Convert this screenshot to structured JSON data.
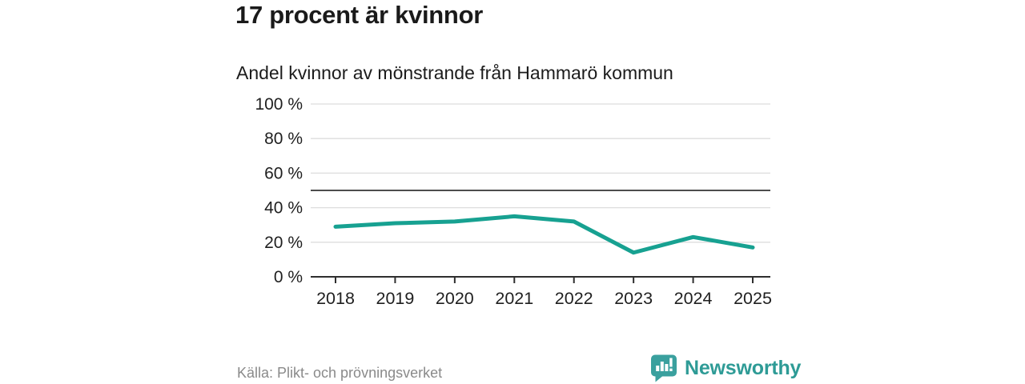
{
  "header": {
    "title": "17 procent är kvinnor",
    "subtitle": "Andel kvinnor av mönstrande från Hammarö kommun"
  },
  "footer": {
    "source": "Källa: Plikt- och prövningsverket",
    "brand_name": "Newsworthy"
  },
  "icons": {
    "logo": "bar-chart-in-speech-bubble"
  },
  "colors": {
    "line": "#17a191",
    "brand": "#2e9b96",
    "logo_fill": "#3aa09e",
    "grid": "#dddddd",
    "axis": "#2e2e2e",
    "reference": "#4d4d4d",
    "tick_text": "#1f1f1f",
    "muted": "#8a8a8a"
  },
  "chart_data": {
    "type": "line",
    "title": "Andel kvinnor av mönstrande från Hammarö kommun",
    "categories": [
      "2018",
      "2019",
      "2020",
      "2021",
      "2022",
      "2023",
      "2024",
      "2025"
    ],
    "series": [
      {
        "name": "Andel kvinnor",
        "values": [
          29,
          31,
          32,
          35,
          32,
          14,
          23,
          17
        ]
      }
    ],
    "xlabel": "",
    "ylabel": "",
    "ylim": [
      0,
      100
    ],
    "yticks": [
      0,
      20,
      40,
      60,
      80,
      100
    ],
    "ytick_suffix": " %",
    "reference_line": 50,
    "grid": true,
    "legend_position": "none"
  }
}
